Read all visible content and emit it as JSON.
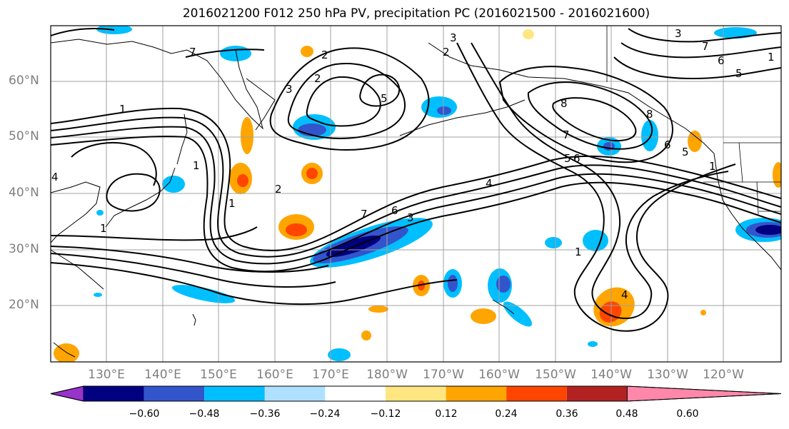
{
  "title": "2016021200 F012 250 hPa PV, precipitation PC (2016021500 - 2016021600)",
  "lat_labels": [
    "60°N",
    "50°N",
    "40°N",
    "30°N",
    "20°N"
  ],
  "lon_labels": [
    "130°E",
    "140°E",
    "150°E",
    "160°E",
    "170°E",
    "180°W",
    "170°W",
    "160°W",
    "150°W",
    "140°W",
    "130°W",
    "120°W"
  ],
  "colorbar": {
    "tick_labels": [
      "−0.60",
      "−0.48",
      "−0.36",
      "−0.24",
      "−0.12",
      "0.12",
      "0.24",
      "0.36",
      "0.48",
      "0.60"
    ],
    "colors": [
      "#9933cc",
      "#000080",
      "#3355cc",
      "#00bfff",
      "#b0e0ff",
      "#ffffff",
      "#ffe680",
      "#ffa500",
      "#ff4500",
      "#b22222",
      "#ff88aa"
    ]
  },
  "contour_labels": [
    "1",
    "1",
    "2",
    "3",
    "4",
    "5",
    "6",
    "7",
    "8",
    "7",
    "6",
    "5",
    "4",
    "3",
    "2",
    "1",
    "1",
    "2",
    "3",
    "7",
    "6",
    "5",
    "8",
    "7",
    "6",
    "5",
    "1",
    "1",
    "1",
    "2",
    "3",
    "4"
  ]
}
